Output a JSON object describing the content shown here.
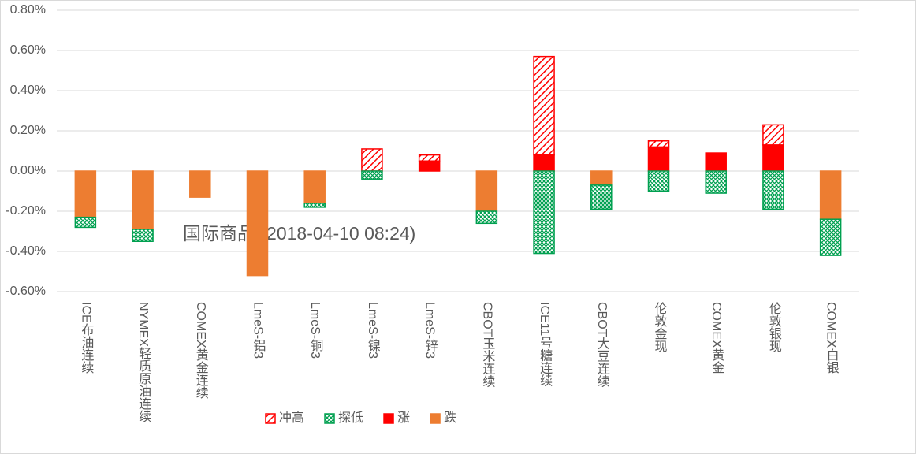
{
  "chart_data": {
    "type": "bar",
    "stacked": true,
    "annotation": "国际商品 (2018-04-10 08:24)",
    "categories": [
      "ICE布油连续",
      "NYMEX轻质原油连续",
      "COMEX黄金连续",
      "LmeS-铝3",
      "LmeS-铜3",
      "LmeS-镍3",
      "LmeS-锌3",
      "CBOT玉米连续",
      "ICE11号糖连续",
      "CBOT大豆连续",
      "伦敦金现",
      "COMEX黄金",
      "伦敦银现",
      "COMEX白银"
    ],
    "series": [
      {
        "name": "冲高",
        "color": "#ff0000",
        "values": [
          0,
          0,
          0,
          0,
          0,
          0.11,
          0.03,
          0,
          0.49,
          0,
          0.03,
          0,
          0.1,
          0
        ]
      },
      {
        "name": "探低",
        "color": "#00a050",
        "values": [
          -0.05,
          -0.06,
          0,
          0,
          -0.02,
          -0.04,
          0,
          -0.06,
          -0.41,
          -0.12,
          -0.1,
          -0.11,
          -0.19,
          -0.18
        ]
      },
      {
        "name": "涨",
        "color": "#ff0000",
        "values": [
          0,
          0,
          0,
          0,
          0,
          0,
          0.05,
          0,
          0.08,
          0,
          0.12,
          0.09,
          0.13,
          0
        ]
      },
      {
        "name": "跌",
        "color": "#ed7d31",
        "values": [
          -0.23,
          -0.29,
          -0.13,
          -0.52,
          -0.16,
          0,
          0,
          -0.2,
          0,
          -0.07,
          0,
          0,
          0,
          -0.24
        ]
      }
    ],
    "ylim": [
      -0.6,
      0.8
    ],
    "yticks": [
      {
        "value": -0.6,
        "label": "-0.60%"
      },
      {
        "value": -0.4,
        "label": "-0.40%"
      },
      {
        "value": -0.2,
        "label": "-0.20%"
      },
      {
        "value": 0,
        "label": "0.00%"
      },
      {
        "value": 0.2,
        "label": "0.20%"
      },
      {
        "value": 0.4,
        "label": "0.40%"
      },
      {
        "value": 0.6,
        "label": "0.60%"
      },
      {
        "value": 0.8,
        "label": "0.80%"
      }
    ],
    "grid": true,
    "legend": "bottom"
  }
}
